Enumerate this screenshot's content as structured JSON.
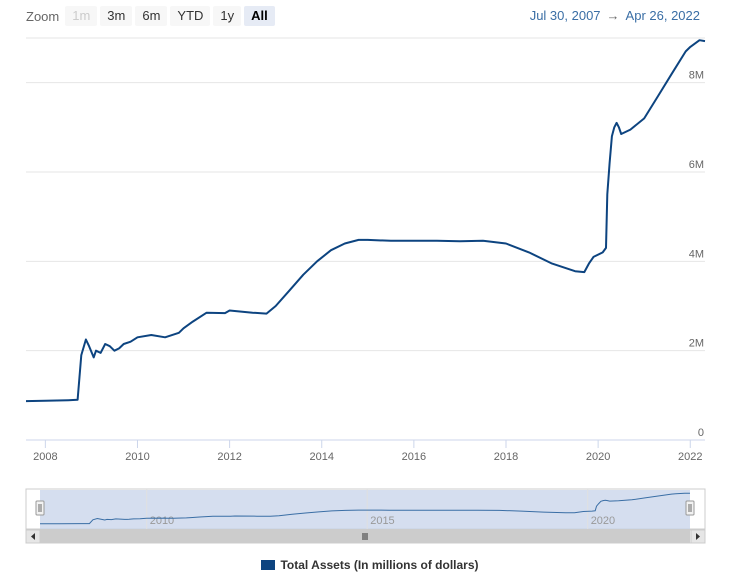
{
  "zoom": {
    "label": "Zoom",
    "buttons": [
      {
        "label": "1m",
        "state": "disabled"
      },
      {
        "label": "3m",
        "state": "normal"
      },
      {
        "label": "6m",
        "state": "normal"
      },
      {
        "label": "YTD",
        "state": "normal"
      },
      {
        "label": "1y",
        "state": "normal"
      },
      {
        "label": "All",
        "state": "selected"
      }
    ]
  },
  "range": {
    "from": "Jul 30, 2007",
    "arrow": "→",
    "to": "Apr 26, 2022"
  },
  "colors": {
    "line": "#0d4480",
    "navigator_mask": "#c7d3ea",
    "grid": "#e6e6e6"
  },
  "chart_data": {
    "type": "line",
    "title": "",
    "xlabel": "",
    "ylabel": "",
    "x_range": [
      2007.58,
      2022.32
    ],
    "ylim": [
      0,
      9000000
    ],
    "y_ticks": [
      0,
      2000000,
      4000000,
      6000000,
      8000000
    ],
    "y_tick_labels": [
      "0",
      "2M",
      "4M",
      "6M",
      "8M"
    ],
    "x_ticks": [
      2008,
      2010,
      2012,
      2014,
      2016,
      2018,
      2020,
      2022
    ],
    "x_tick_labels": [
      "2008",
      "2010",
      "2012",
      "2014",
      "2016",
      "2018",
      "2020",
      "2022"
    ],
    "navigator_ticks": [
      2010,
      2015,
      2020
    ],
    "navigator_tick_labels": [
      "2010",
      "2015",
      "2020"
    ],
    "legend": {
      "placement": "bottom-center"
    },
    "series": [
      {
        "name": "Total Assets (In millions of dollars)",
        "x": [
          2007.58,
          2008.0,
          2008.5,
          2008.7,
          2008.78,
          2008.88,
          2008.95,
          2009.05,
          2009.1,
          2009.2,
          2009.3,
          2009.4,
          2009.5,
          2009.6,
          2009.7,
          2009.85,
          2010.0,
          2010.3,
          2010.6,
          2010.9,
          2011.0,
          2011.2,
          2011.5,
          2011.9,
          2012.0,
          2012.5,
          2012.8,
          2013.0,
          2013.3,
          2013.6,
          2013.9,
          2014.2,
          2014.5,
          2014.8,
          2015.0,
          2015.5,
          2016.0,
          2016.5,
          2017.0,
          2017.5,
          2018.0,
          2018.5,
          2019.0,
          2019.5,
          2019.7,
          2019.8,
          2019.9,
          2020.1,
          2020.17,
          2020.2,
          2020.25,
          2020.3,
          2020.35,
          2020.4,
          2020.45,
          2020.5,
          2020.7,
          2021.0,
          2021.3,
          2021.6,
          2021.9,
          2022.0,
          2022.2,
          2022.32
        ],
        "values": [
          870000,
          880000,
          890000,
          900000,
          1900000,
          2250000,
          2100000,
          1850000,
          2000000,
          1950000,
          2150000,
          2100000,
          2000000,
          2050000,
          2150000,
          2200000,
          2300000,
          2350000,
          2300000,
          2400000,
          2500000,
          2650000,
          2850000,
          2840000,
          2900000,
          2850000,
          2830000,
          3000000,
          3350000,
          3700000,
          4000000,
          4250000,
          4400000,
          4480000,
          4480000,
          4460000,
          4460000,
          4460000,
          4450000,
          4460000,
          4400000,
          4200000,
          3950000,
          3780000,
          3760000,
          3950000,
          4100000,
          4200000,
          4300000,
          5500000,
          6200000,
          6800000,
          7000000,
          7100000,
          7000000,
          6850000,
          6950000,
          7200000,
          7700000,
          8200000,
          8700000,
          8800000,
          8950000,
          8930000
        ]
      }
    ]
  }
}
